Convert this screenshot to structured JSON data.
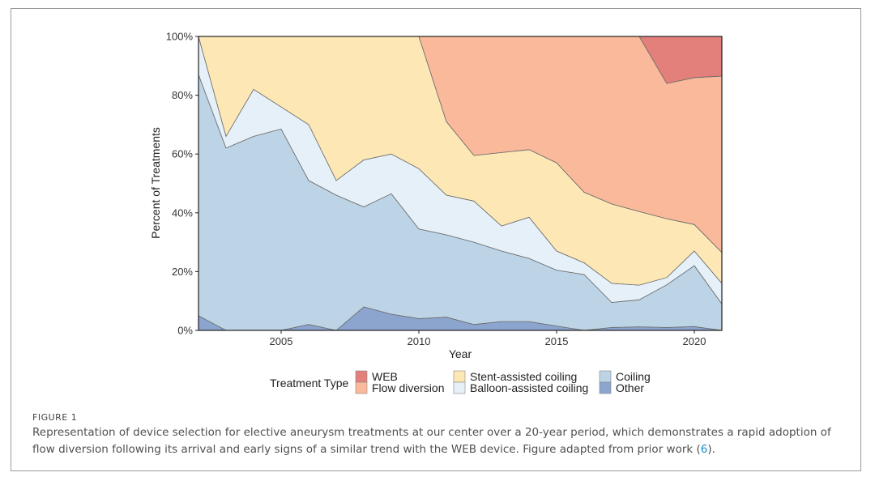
{
  "chart_data": {
    "type": "area",
    "stacked": true,
    "normalized": true,
    "xlabel": "Year",
    "ylabel": "Percent of Treatments",
    "xlim": [
      2002,
      2021
    ],
    "ylim": [
      0,
      100
    ],
    "x_ticks": [
      2005,
      2010,
      2015,
      2020
    ],
    "y_ticks": [
      "0%",
      "20%",
      "40%",
      "60%",
      "80%",
      "100%"
    ],
    "y_tick_values": [
      0,
      20,
      40,
      60,
      80,
      100
    ],
    "grid": false,
    "legend_title": "Treatment Type",
    "legend_position": "bottom",
    "x": [
      2002,
      2003,
      2004,
      2005,
      2006,
      2007,
      2008,
      2009,
      2010,
      2011,
      2012,
      2013,
      2014,
      2015,
      2016,
      2017,
      2018,
      2019,
      2020,
      2021
    ],
    "series": [
      {
        "name": "Other",
        "color": "#8ca5cf",
        "values": [
          5,
          0,
          0,
          0,
          2,
          0,
          8,
          5.5,
          4,
          4.5,
          2,
          3,
          3,
          1.5,
          0,
          1,
          1.2,
          1,
          1.3,
          0
        ]
      },
      {
        "name": "Coiling",
        "color": "#bcd4e6",
        "values": [
          82,
          62,
          66,
          68.5,
          49,
          46,
          34,
          41,
          30.5,
          28,
          28,
          24,
          21.5,
          19,
          19,
          8.5,
          9.2,
          14.5,
          20.7,
          9
        ]
      },
      {
        "name": "Balloon-assisted coiling",
        "color": "#e6f0f8",
        "values": [
          13,
          4,
          16,
          7.5,
          19,
          5,
          16,
          13.5,
          20.5,
          13.5,
          14,
          8.5,
          14,
          6.5,
          4,
          6.5,
          5,
          2.5,
          5,
          7
        ]
      },
      {
        "name": "Stent-assisted coiling",
        "color": "#fde8b5",
        "values": [
          0,
          34,
          18,
          24,
          30,
          49,
          42,
          40,
          45,
          25,
          15.5,
          25,
          23,
          30,
          24,
          27,
          25,
          20,
          9,
          10.5
        ]
      },
      {
        "name": "Flow diversion",
        "color": "#f9b99a",
        "values": [
          0,
          0,
          0,
          0,
          0,
          0,
          0,
          0,
          0,
          29,
          40.5,
          39.5,
          38.5,
          43,
          53,
          57,
          59.6,
          46,
          50,
          60
        ]
      },
      {
        "name": "WEB",
        "color": "#e4807b",
        "values": [
          0,
          0,
          0,
          0,
          0,
          0,
          0,
          0,
          0,
          0,
          0,
          0,
          0,
          0,
          0,
          0,
          0,
          16,
          14,
          13.5
        ]
      }
    ],
    "legend_order": [
      "WEB",
      "Flow diversion",
      "Stent-assisted coiling",
      "Balloon-assisted coiling",
      "Coiling",
      "Other"
    ]
  },
  "figure": {
    "label": "FIGURE 1",
    "caption_line1": "Representation of device selection for elective aneurysm treatments at our center over a 20-year period, which demonstrates a rapid adoption of",
    "caption_line2_pre": "flow diversion following its arrival and early signs of a similar trend with the WEB device. Figure adapted from prior work (",
    "caption_ref": "6",
    "caption_line2_post": ")."
  }
}
